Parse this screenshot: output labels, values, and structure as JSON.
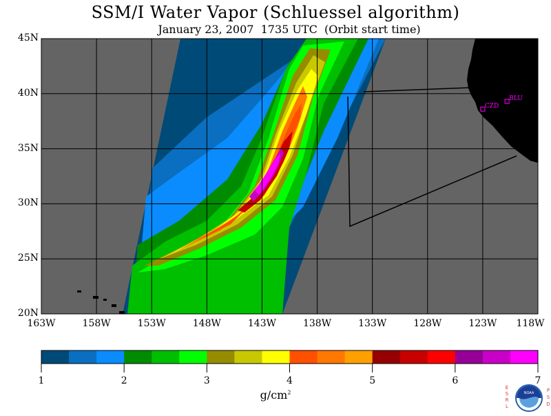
{
  "title": "SSM/I Water Vapor (Schluessel algorithm)",
  "subtitle": "January 23, 2007  1735 UTC  (Orbit start time)",
  "map": {
    "extent": {
      "lon_min": -163,
      "lon_max": -118,
      "lat_min": 20,
      "lat_max": 45
    },
    "lat_labels": [
      "45N",
      "40N",
      "35N",
      "30N",
      "25N",
      "20N"
    ],
    "lat_values": [
      45,
      40,
      35,
      30,
      25,
      20
    ],
    "lon_labels": [
      "163W",
      "158W",
      "153W",
      "148W",
      "143W",
      "138W",
      "133W",
      "128W",
      "123W",
      "118W"
    ],
    "lon_values": [
      -163,
      -158,
      -153,
      -148,
      -143,
      -138,
      -133,
      -128,
      -123,
      -118
    ],
    "stations": [
      {
        "name": "CZD",
        "lon": -123.0,
        "lat": 38.6
      },
      {
        "name": "BLU",
        "lon": -120.8,
        "lat": 39.3
      }
    ],
    "colors": {
      "land": "#000000",
      "nodata": "#646464",
      "grid": "#000000",
      "station": "#ff00ff"
    }
  },
  "colorbar": {
    "ticks": [
      "1",
      "2",
      "3",
      "4",
      "5",
      "6",
      "7"
    ],
    "colors": [
      "#004a78",
      "#0a6fc0",
      "#0a8cff",
      "#008c00",
      "#00be00",
      "#00ff00",
      "#968c00",
      "#c8c800",
      "#ffff00",
      "#ff5000",
      "#ff7800",
      "#ffa000",
      "#960000",
      "#c80000",
      "#ff0000",
      "#960096",
      "#c800c8",
      "#ff00ff"
    ],
    "unit": "g/cm",
    "unit_sup": "2"
  },
  "logo": {
    "left_letters": [
      "E",
      "S",
      "R",
      "L"
    ],
    "right_letters": [
      "P",
      "S",
      "D"
    ],
    "text": "NOAA"
  }
}
